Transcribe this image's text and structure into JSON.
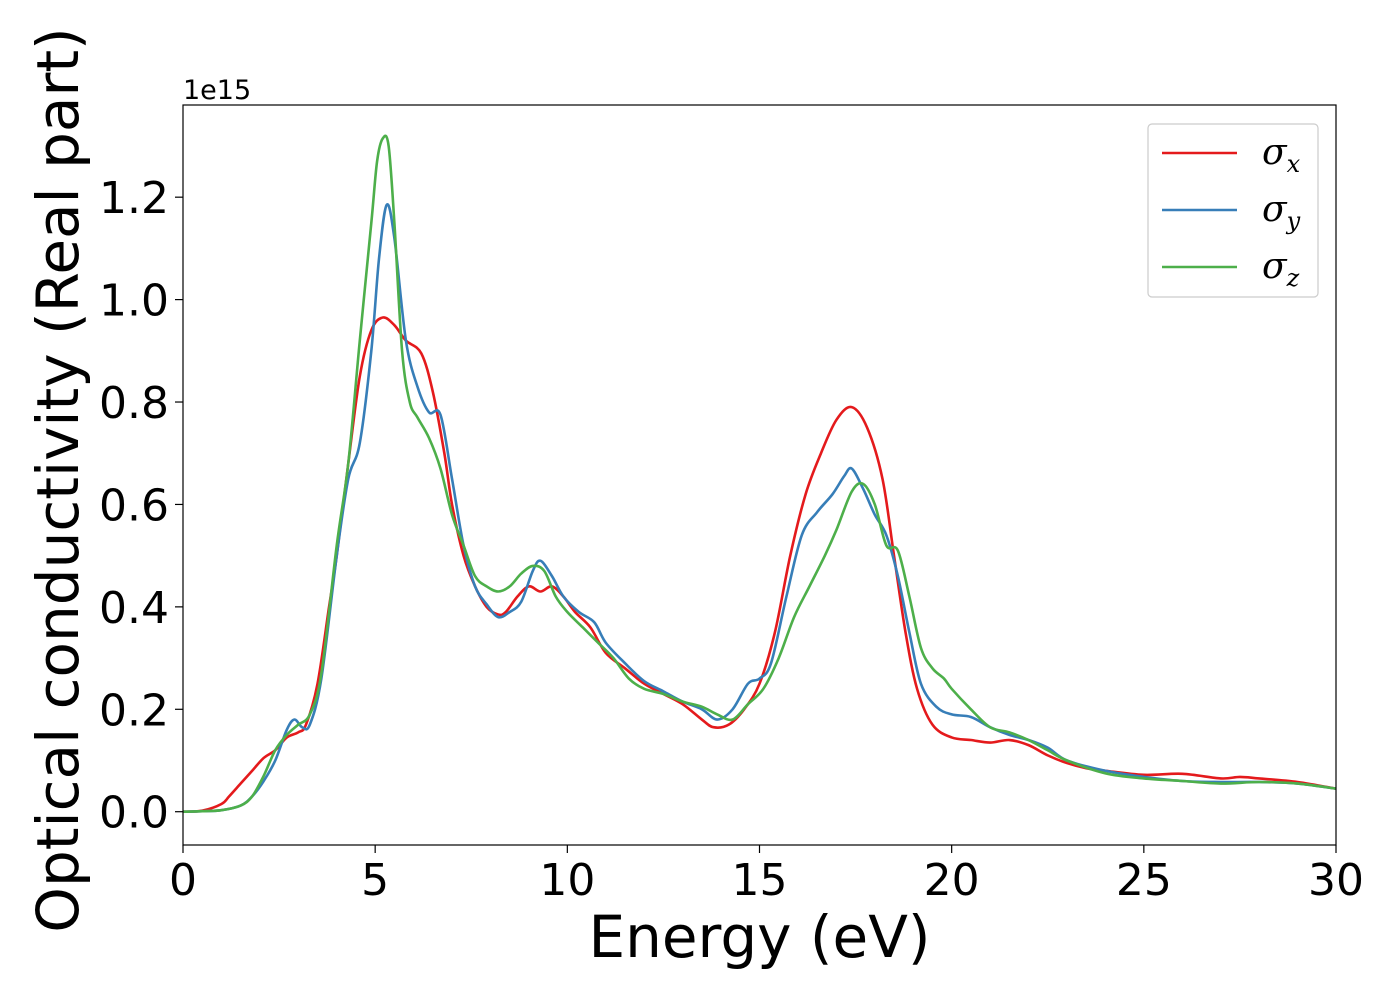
{
  "chart_data": {
    "type": "line",
    "title": "",
    "xlabel": "Energy (eV)",
    "ylabel": "Optical conductivity (Real part)",
    "y_offset_label": "1e15",
    "xlim": [
      0,
      30
    ],
    "ylim": [
      -0.065,
      1.38
    ],
    "xticks": [
      0,
      5,
      10,
      15,
      20,
      25,
      30
    ],
    "yticks": [
      0.0,
      0.2,
      0.4,
      0.6,
      0.8,
      1.0,
      1.2
    ],
    "grid": false,
    "legend_position": "upper-right",
    "series": [
      {
        "name": "σ",
        "subscript": "x",
        "color": "#e41a1c",
        "x": [
          0,
          0.5,
          1.0,
          1.2,
          1.5,
          1.8,
          2.1,
          2.4,
          2.7,
          3.0,
          3.2,
          3.5,
          3.8,
          4.0,
          4.3,
          4.6,
          4.9,
          5.2,
          5.5,
          5.8,
          6.2,
          6.5,
          6.8,
          7.0,
          7.3,
          7.6,
          7.9,
          8.2,
          8.4,
          8.7,
          9.0,
          9.3,
          9.6,
          9.9,
          10.2,
          10.6,
          11.0,
          11.5,
          12.0,
          12.5,
          13.0,
          13.5,
          13.8,
          14.2,
          14.6,
          15.0,
          15.4,
          15.8,
          16.2,
          16.6,
          17.0,
          17.4,
          17.8,
          18.2,
          18.5,
          18.8,
          19.1,
          19.5,
          20.0,
          20.5,
          21.0,
          21.5,
          22.0,
          22.5,
          23.0,
          23.5,
          24.0,
          25.0,
          26.0,
          27.0,
          27.5,
          28.0,
          29.0,
          30.0
        ],
        "values": [
          0.0,
          0.002,
          0.015,
          0.03,
          0.055,
          0.08,
          0.105,
          0.12,
          0.145,
          0.155,
          0.17,
          0.25,
          0.4,
          0.5,
          0.68,
          0.85,
          0.94,
          0.965,
          0.95,
          0.92,
          0.895,
          0.82,
          0.7,
          0.6,
          0.5,
          0.44,
          0.4,
          0.385,
          0.39,
          0.42,
          0.44,
          0.43,
          0.44,
          0.42,
          0.39,
          0.36,
          0.31,
          0.28,
          0.25,
          0.23,
          0.21,
          0.18,
          0.165,
          0.17,
          0.2,
          0.25,
          0.35,
          0.5,
          0.62,
          0.7,
          0.765,
          0.79,
          0.75,
          0.65,
          0.5,
          0.35,
          0.24,
          0.17,
          0.145,
          0.14,
          0.135,
          0.14,
          0.13,
          0.11,
          0.095,
          0.085,
          0.08,
          0.072,
          0.074,
          0.065,
          0.068,
          0.065,
          0.058,
          0.045
        ]
      },
      {
        "name": "σ",
        "subscript": "y",
        "color": "#377eb8",
        "x": [
          0,
          0.5,
          1.0,
          1.5,
          1.8,
          2.1,
          2.4,
          2.7,
          2.9,
          3.1,
          3.3,
          3.6,
          4.0,
          4.3,
          4.6,
          4.9,
          5.1,
          5.3,
          5.5,
          5.8,
          6.1,
          6.4,
          6.7,
          7.0,
          7.3,
          7.6,
          7.9,
          8.2,
          8.5,
          8.8,
          9.1,
          9.3,
          9.6,
          9.9,
          10.3,
          10.7,
          11.0,
          11.5,
          12.0,
          12.5,
          13.0,
          13.5,
          13.9,
          14.3,
          14.7,
          15.0,
          15.3,
          15.7,
          16.1,
          16.5,
          16.9,
          17.2,
          17.4,
          17.7,
          18.0,
          18.3,
          18.6,
          18.9,
          19.2,
          19.6,
          20.0,
          20.5,
          21.0,
          21.5,
          22.0,
          22.5,
          23.0,
          24.0,
          25.0,
          26.0,
          27.0,
          28.0,
          29.0,
          30.0
        ],
        "values": [
          0.0,
          0.001,
          0.003,
          0.012,
          0.03,
          0.06,
          0.1,
          0.16,
          0.18,
          0.165,
          0.17,
          0.26,
          0.5,
          0.65,
          0.72,
          0.9,
          1.08,
          1.185,
          1.12,
          0.92,
          0.83,
          0.78,
          0.775,
          0.65,
          0.52,
          0.44,
          0.405,
          0.38,
          0.39,
          0.41,
          0.47,
          0.49,
          0.46,
          0.42,
          0.39,
          0.37,
          0.33,
          0.29,
          0.255,
          0.235,
          0.215,
          0.2,
          0.18,
          0.2,
          0.25,
          0.26,
          0.29,
          0.42,
          0.54,
          0.585,
          0.62,
          0.655,
          0.67,
          0.63,
          0.58,
          0.54,
          0.46,
          0.35,
          0.25,
          0.205,
          0.19,
          0.185,
          0.165,
          0.15,
          0.14,
          0.125,
          0.1,
          0.08,
          0.068,
          0.06,
          0.058,
          0.058,
          0.055,
          0.045
        ]
      },
      {
        "name": "σ",
        "subscript": "z",
        "color": "#4daf4a",
        "x": [
          0,
          0.5,
          1.0,
          1.5,
          1.8,
          2.1,
          2.4,
          2.7,
          3.0,
          3.3,
          3.6,
          4.0,
          4.3,
          4.6,
          4.9,
          5.05,
          5.2,
          5.35,
          5.5,
          5.7,
          5.9,
          6.1,
          6.4,
          6.7,
          7.0,
          7.3,
          7.6,
          7.9,
          8.2,
          8.5,
          8.8,
          9.1,
          9.4,
          9.7,
          10.0,
          10.4,
          10.8,
          11.2,
          11.6,
          12.0,
          12.5,
          13.0,
          13.5,
          13.9,
          14.3,
          14.7,
          15.1,
          15.5,
          15.9,
          16.3,
          16.7,
          17.0,
          17.4,
          17.7,
          18.0,
          18.3,
          18.6,
          18.9,
          19.2,
          19.5,
          19.8,
          20.0,
          20.5,
          21.0,
          21.5,
          22.0,
          22.5,
          23.0,
          24.0,
          25.0,
          26.0,
          27.0,
          28.0,
          29.0,
          30.0
        ],
        "values": [
          0.0,
          0.001,
          0.003,
          0.012,
          0.03,
          0.07,
          0.12,
          0.15,
          0.17,
          0.19,
          0.27,
          0.52,
          0.68,
          0.92,
          1.15,
          1.27,
          1.315,
          1.3,
          1.15,
          0.9,
          0.8,
          0.77,
          0.73,
          0.67,
          0.58,
          0.52,
          0.46,
          0.44,
          0.43,
          0.44,
          0.465,
          0.48,
          0.47,
          0.42,
          0.39,
          0.36,
          0.33,
          0.3,
          0.26,
          0.24,
          0.23,
          0.215,
          0.205,
          0.19,
          0.18,
          0.21,
          0.24,
          0.3,
          0.38,
          0.44,
          0.5,
          0.55,
          0.625,
          0.64,
          0.6,
          0.52,
          0.51,
          0.42,
          0.32,
          0.28,
          0.26,
          0.24,
          0.2,
          0.165,
          0.155,
          0.14,
          0.12,
          0.1,
          0.075,
          0.065,
          0.06,
          0.055,
          0.058,
          0.055,
          0.045
        ]
      }
    ]
  }
}
